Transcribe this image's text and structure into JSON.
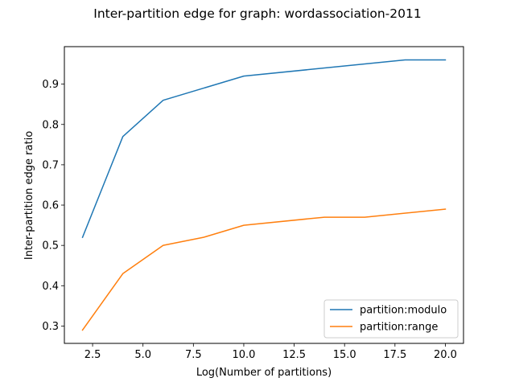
{
  "chart_data": {
    "type": "line",
    "title": "Inter-partition edge for graph: wordassociation-2011",
    "xlabel": "Log(Number of partitions)",
    "ylabel": "Inter-partition edge ratio",
    "xlim": [
      1.1,
      20.9
    ],
    "ylim": [
      0.257,
      0.993
    ],
    "xticks": [
      2.5,
      5.0,
      7.5,
      10.0,
      12.5,
      15.0,
      17.5,
      20.0
    ],
    "xtick_labels": [
      "2.5",
      "5.0",
      "7.5",
      "10.0",
      "12.5",
      "15.0",
      "17.5",
      "20.0"
    ],
    "yticks": [
      0.3,
      0.4,
      0.5,
      0.6,
      0.7,
      0.8,
      0.9
    ],
    "ytick_labels": [
      "0.3",
      "0.4",
      "0.5",
      "0.6",
      "0.7",
      "0.8",
      "0.9"
    ],
    "grid": false,
    "legend_position": "lower-right",
    "series": [
      {
        "name": "partition:modulo",
        "color": "#1f77b4",
        "x": [
          2,
          4,
          6,
          10,
          18,
          20
        ],
        "y": [
          0.52,
          0.77,
          0.86,
          0.92,
          0.96,
          0.96
        ]
      },
      {
        "name": "partition:range",
        "color": "#ff7f0e",
        "x": [
          2,
          4,
          6,
          8,
          10,
          14,
          16,
          20
        ],
        "y": [
          0.29,
          0.43,
          0.5,
          0.52,
          0.55,
          0.57,
          0.57,
          0.59
        ]
      }
    ]
  }
}
